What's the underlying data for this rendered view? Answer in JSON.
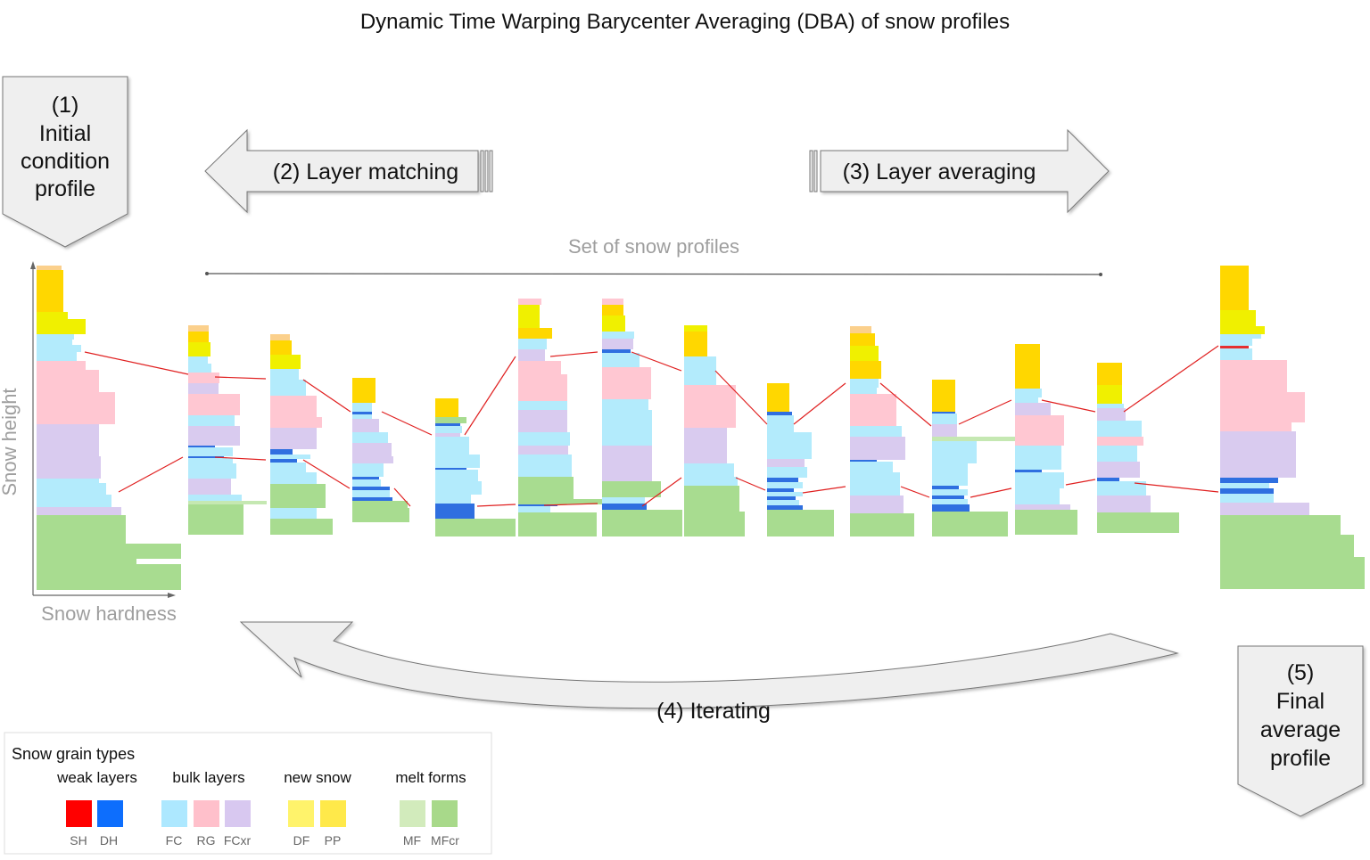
{
  "title": "Dynamic Time Warping Barycenter Averaging (DBA) of snow profiles",
  "steps": {
    "initial": [
      "(1)",
      "Initial",
      "condition",
      "profile"
    ],
    "matching": "(2) Layer matching",
    "averaging": "(3) Layer averaging",
    "iterating": "(4) Iterating",
    "final": [
      "(5)",
      "Final",
      "average",
      "profile"
    ]
  },
  "set_label": "Set of snow profiles",
  "axes": {
    "y_label": "Snow height",
    "x_label": "Snow hardness"
  },
  "legend": {
    "title": "Snow grain types",
    "groups": [
      {
        "label": "weak layers",
        "items": [
          {
            "code": "SH",
            "color": "#ff0000"
          },
          {
            "code": "DH",
            "color": "#0d6efd"
          }
        ]
      },
      {
        "label": "bulk layers",
        "items": [
          {
            "code": "FC",
            "color": "#ade8ff"
          },
          {
            "code": "RG",
            "color": "#ffc0cb"
          },
          {
            "code": "FCxr",
            "color": "#d8c8f0"
          }
        ]
      },
      {
        "label": "new snow",
        "items": [
          {
            "code": "DF",
            "color": "#fff36b"
          },
          {
            "code": "PP",
            "color": "#ffe94a"
          }
        ]
      },
      {
        "label": "melt forms",
        "items": [
          {
            "code": "MF",
            "color": "#d2ebbc"
          },
          {
            "code": "MFcr",
            "color": "#a8d98a"
          }
        ]
      }
    ]
  },
  "colors": {
    "PP": "#ffd700",
    "DF": "#f0f000",
    "FC": "#b3ebfc",
    "RG": "#ffc7d2",
    "FCxr": "#d9cbef",
    "DH": "#2f6fe0",
    "SH": "#e53030",
    "MFcr": "#a8dc90",
    "MF": "#c5e8b2",
    "FCtop": "#fbd08c",
    "link": "#e02020"
  }
}
